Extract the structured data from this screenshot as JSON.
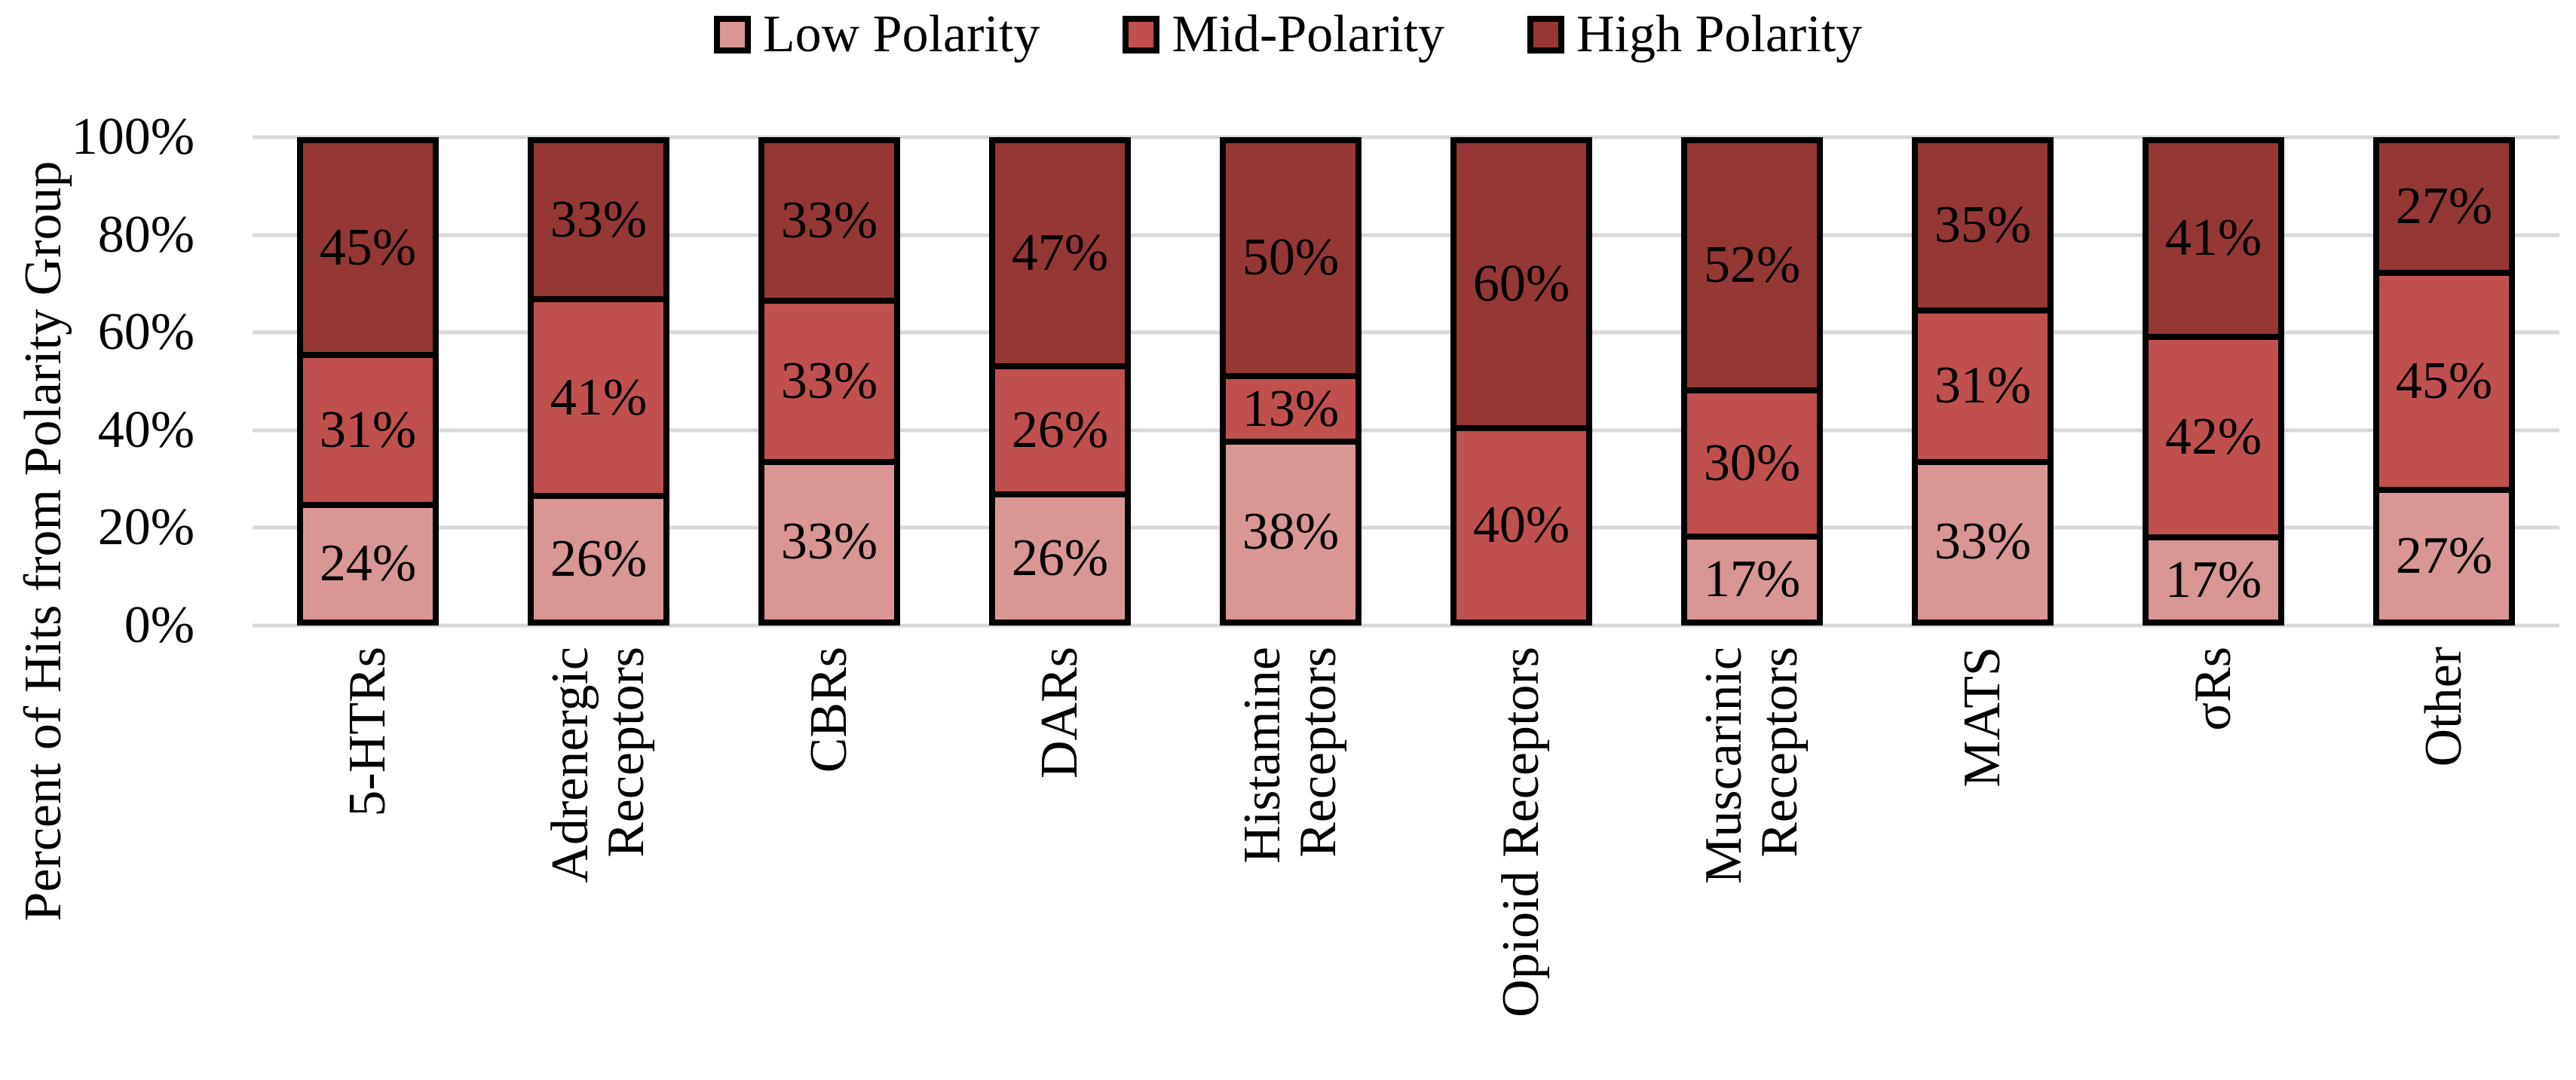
{
  "legend": {
    "items": [
      {
        "label": "Low Polarity",
        "color": "#D99694"
      },
      {
        "label": "Mid-Polarity",
        "color": "#C0504D"
      },
      {
        "label": "High Polarity",
        "color": "#953735"
      }
    ]
  },
  "y_axis": {
    "title": "Percent of Hits from Polarity Group",
    "ticks": [
      {
        "label": "100%",
        "value": 100
      },
      {
        "label": "80%",
        "value": 80
      },
      {
        "label": "60%",
        "value": 60
      },
      {
        "label": "40%",
        "value": 40
      },
      {
        "label": "20%",
        "value": 20
      },
      {
        "label": "0%",
        "value": 0
      }
    ]
  },
  "chart_data": {
    "type": "bar",
    "subtype": "100-percent-stacked-column",
    "title": "",
    "xlabel": "",
    "ylabel": "Percent of Hits from Polarity Group",
    "ylim": [
      0,
      100
    ],
    "grid": true,
    "legend_position": "top",
    "data_label_format": "{value}%",
    "categories": [
      "5-HTRs",
      "Adrenergic Receptors",
      "CBRs",
      "DARs",
      "Histamine Receptors",
      "Opioid Receptors",
      "Muscarinic Receptors",
      "MATS",
      "σRs",
      "Other"
    ],
    "category_lines": [
      [
        "5-HTRs"
      ],
      [
        "Adrenergic",
        "Receptors"
      ],
      [
        "CBRs"
      ],
      [
        "DARs"
      ],
      [
        "Histamine",
        "Receptors"
      ],
      [
        "Opioid Receptors"
      ],
      [
        "Muscarinic",
        "Receptors"
      ],
      [
        "MATS"
      ],
      [
        "σRs"
      ],
      [
        "Other"
      ]
    ],
    "series": [
      {
        "name": "Low Polarity",
        "color": "#D99694",
        "values": [
          24,
          26,
          33,
          26,
          38,
          0,
          17,
          33,
          17,
          27
        ]
      },
      {
        "name": "Mid-Polarity",
        "color": "#C0504D",
        "values": [
          31,
          41,
          33,
          26,
          13,
          40,
          30,
          31,
          42,
          45
        ]
      },
      {
        "name": "High Polarity",
        "color": "#953735",
        "values": [
          45,
          33,
          33,
          47,
          50,
          60,
          52,
          35,
          41,
          27
        ]
      }
    ]
  },
  "colors": {
    "background": "#FFFFFF",
    "gridline": "#D9D9D9",
    "bar_border": "#000000",
    "text": "#000000"
  }
}
